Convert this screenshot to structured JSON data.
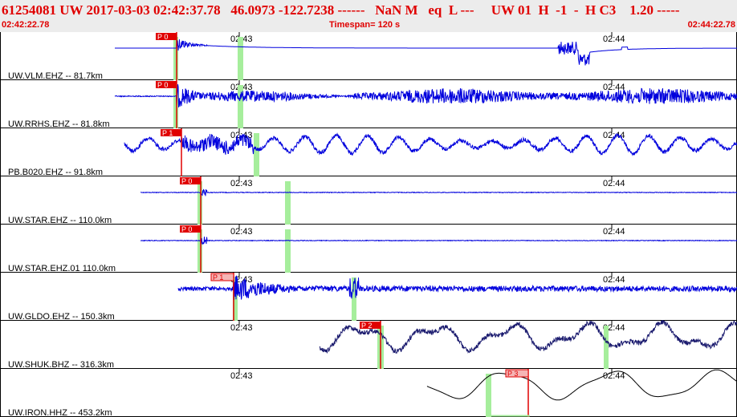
{
  "header": {
    "title": "61254081 UW 2017-03-03 02:42:37.78   46.0973 -122.7238 ------   NaN M   eq  L ---     UW 01  H  -1  -  H C3    1.20 -----",
    "start_time": "02:42:22.78",
    "timespan": "Timespan= 120 s",
    "end_time": "02:44:22.78"
  },
  "colors": {
    "header_bg": "#ececec",
    "header_text": "#e00000",
    "trace_blue": "#0000dd",
    "trace_navy": "#1a1a6e",
    "trace_black": "#000000",
    "pick_red": "#e00000",
    "pick_pink": "#f5b5b5",
    "window_green": "#a6ee9c"
  },
  "time_ticks": [
    "02:43",
    "02:44"
  ],
  "traces": [
    {
      "label": "UW.VLM.EHZ -- 81.7km",
      "pick": "P 0",
      "color": "blue"
    },
    {
      "label": "UW.RRHS.EHZ -- 81.8km",
      "pick": "P 0",
      "color": "blue"
    },
    {
      "label": "PB.B020.EHZ -- 91.8km",
      "pick": "P 1",
      "color": "blue"
    },
    {
      "label": "UW.STAR.EHZ -- 110.0km",
      "pick": "P 0",
      "color": "blue"
    },
    {
      "label": "UW.STAR.EHZ.01 110.0km",
      "pick": "P 0",
      "color": "blue"
    },
    {
      "label": "UW.GLDO.EHZ -- 150.3km",
      "pick": "P 1",
      "color": "blue"
    },
    {
      "label": "UW.SHUK.BHZ -- 316.3km",
      "pick": "P 2",
      "color": "navy"
    },
    {
      "label": "UW.IRON.HHZ -- 453.2km",
      "pick": "P 3",
      "color": "black"
    }
  ]
}
